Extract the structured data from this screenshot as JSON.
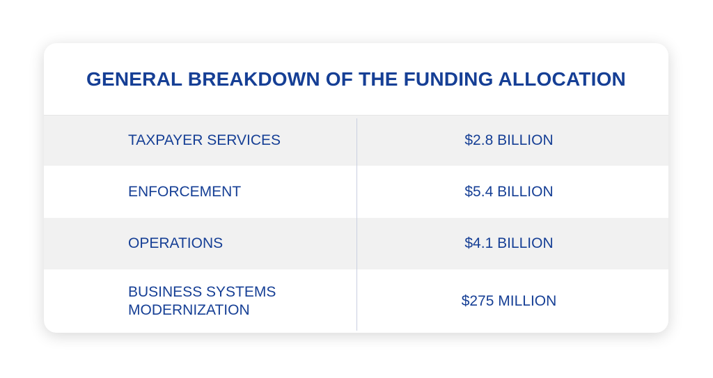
{
  "title": "GENERAL BREAKDOWN OF THE FUNDING ALLOCATION",
  "rows": [
    {
      "category": "TAXPAYER SERVICES",
      "amount": "$2.8 BILLION"
    },
    {
      "category": "ENFORCEMENT",
      "amount": "$5.4 BILLION"
    },
    {
      "category": "OPERATIONS",
      "amount": "$4.1 BILLION"
    },
    {
      "category_line1": "BUSINESS SYSTEMS",
      "category_line2": "MODERNIZATION",
      "amount": "$275 MILLION"
    }
  ],
  "colors": {
    "text": "#163f95",
    "shaded_row": "#f1f1f1",
    "background": "#ffffff"
  }
}
